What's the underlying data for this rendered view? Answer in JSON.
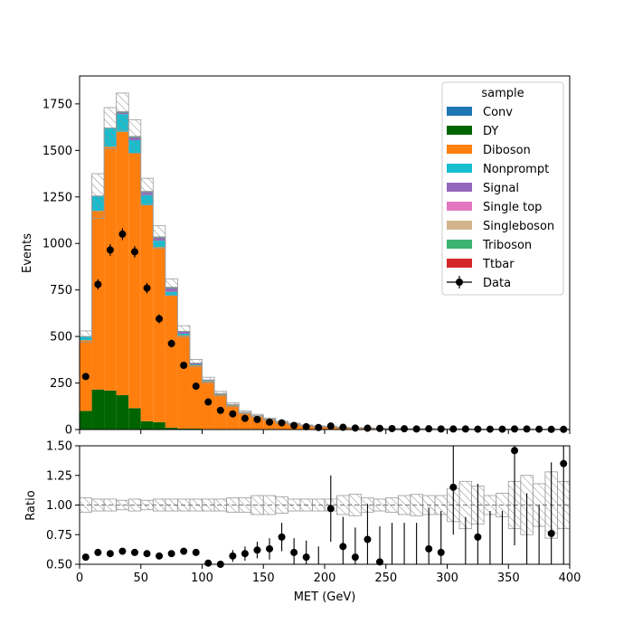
{
  "chart_data": {
    "type": "stacked-histogram-with-ratio",
    "xlabel": "MET (GeV)",
    "xlim": [
      0,
      400
    ],
    "x_ticks": [
      "0",
      "50",
      "100",
      "150",
      "200",
      "250",
      "300",
      "350",
      "400"
    ],
    "bin_edges": [
      0,
      10,
      20,
      30,
      40,
      50,
      60,
      70,
      80,
      90,
      100,
      110,
      120,
      130,
      140,
      150,
      160,
      170,
      180,
      190,
      200,
      210,
      220,
      230,
      240,
      250,
      260,
      270,
      280,
      290,
      300,
      310,
      320,
      330,
      340,
      350,
      360,
      370,
      380,
      390,
      400
    ],
    "top": {
      "ylabel": "Events",
      "ylim": [
        0,
        1900
      ],
      "y_ticks": [
        "0",
        "250",
        "500",
        "750",
        "1000",
        "1250",
        "1500",
        "1750"
      ],
      "legend_title": "sample",
      "legend_position": "top-right",
      "series": [
        {
          "name": "Conv",
          "color": "#1f77b4",
          "values": [
            0,
            0,
            0,
            0,
            0,
            0,
            0,
            0,
            0,
            0,
            0,
            0,
            0,
            0,
            0,
            0,
            0,
            0,
            0,
            0,
            0,
            0,
            0,
            0,
            0,
            0,
            0,
            0,
            0,
            0,
            0,
            0,
            0,
            0,
            0,
            0,
            0,
            0,
            0,
            0
          ]
        },
        {
          "name": "DY",
          "color": "#006400",
          "values": [
            100,
            215,
            210,
            185,
            115,
            45,
            40,
            10,
            5,
            5,
            3,
            2,
            1,
            1,
            0,
            0,
            0,
            0,
            0,
            0,
            0,
            0,
            0,
            0,
            0,
            0,
            0,
            0,
            0,
            0,
            0,
            0,
            0,
            0,
            0,
            0,
            0,
            0,
            0,
            0
          ]
        },
        {
          "name": "Diboson",
          "color": "#ff7f0e",
          "values": [
            380,
            960,
            1310,
            1415,
            1370,
            1160,
            940,
            710,
            500,
            340,
            255,
            185,
            128,
            88,
            72,
            55,
            40,
            30,
            22,
            17,
            15,
            11,
            9,
            8,
            6,
            5,
            5,
            4,
            4,
            3,
            3,
            3,
            2,
            2,
            2,
            2,
            2,
            1,
            1,
            1
          ]
        },
        {
          "name": "Nonprompt",
          "color": "#17becf",
          "values": [
            20,
            80,
            100,
            95,
            70,
            55,
            35,
            20,
            10,
            5,
            4,
            3,
            2,
            1,
            1,
            1,
            0,
            0,
            0,
            0,
            0,
            0,
            0,
            0,
            0,
            0,
            0,
            0,
            0,
            0,
            0,
            0,
            0,
            0,
            0,
            0,
            0,
            0,
            0,
            0
          ]
        },
        {
          "name": "Signal",
          "color": "#9467bd",
          "values": [
            0,
            0,
            0,
            8,
            15,
            15,
            15,
            20,
            10,
            5,
            3,
            2,
            2,
            1,
            1,
            0,
            0,
            0,
            0,
            0,
            0,
            0,
            0,
            0,
            0,
            0,
            0,
            0,
            0,
            0,
            0,
            0,
            0,
            0,
            0,
            0,
            0,
            0,
            0,
            0
          ]
        },
        {
          "name": "Single top",
          "color": "#e377c2",
          "values": [
            0,
            0,
            0,
            0,
            0,
            0,
            0,
            0,
            0,
            0,
            0,
            0,
            0,
            0,
            0,
            0,
            0,
            0,
            0,
            0,
            0,
            0,
            0,
            0,
            0,
            0,
            0,
            0,
            0,
            0,
            0,
            0,
            0,
            0,
            0,
            0,
            0,
            0,
            0,
            0
          ]
        },
        {
          "name": "Singleboson",
          "color": "#d2b48c",
          "values": [
            0,
            0,
            0,
            0,
            0,
            0,
            0,
            0,
            0,
            0,
            0,
            0,
            0,
            0,
            0,
            0,
            0,
            0,
            0,
            0,
            0,
            0,
            0,
            0,
            0,
            0,
            0,
            0,
            0,
            0,
            0,
            0,
            0,
            0,
            0,
            0,
            0,
            0,
            0,
            0
          ]
        },
        {
          "name": "Triboson",
          "color": "#3cb371",
          "values": [
            0,
            0,
            0,
            5,
            5,
            5,
            5,
            5,
            3,
            2,
            1,
            1,
            1,
            1,
            1,
            0,
            0,
            0,
            0,
            0,
            0,
            0,
            0,
            0,
            0,
            0,
            0,
            0,
            0,
            0,
            0,
            0,
            0,
            0,
            0,
            0,
            0,
            0,
            0,
            0
          ]
        },
        {
          "name": "Ttbar",
          "color": "#d62728",
          "values": [
            0,
            0,
            0,
            0,
            0,
            0,
            0,
            0,
            0,
            0,
            0,
            0,
            0,
            0,
            0,
            0,
            0,
            0,
            0,
            0,
            0,
            0,
            0,
            0,
            0,
            0,
            0,
            0,
            0,
            0,
            0,
            0,
            0,
            0,
            0,
            0,
            0,
            0,
            0,
            0
          ]
        }
      ],
      "mc_uncertainty": [
        30,
        120,
        110,
        100,
        90,
        70,
        60,
        45,
        30,
        20,
        15,
        12,
        10,
        8,
        7,
        6,
        5,
        4,
        3,
        3,
        2,
        2,
        2,
        2,
        1,
        1,
        1,
        1,
        1,
        1,
        1,
        1,
        1,
        1,
        1,
        1,
        1,
        1,
        1,
        1
      ],
      "data": {
        "name": "Data",
        "values": [
          285,
          780,
          965,
          1050,
          955,
          760,
          595,
          462,
          345,
          233,
          148,
          103,
          84,
          60,
          54,
          40,
          36,
          22,
          15,
          11,
          19,
          12,
          8,
          7,
          6,
          5,
          4,
          3,
          4,
          3,
          3,
          3,
          2,
          2,
          2,
          3,
          3,
          2,
          1,
          1
        ],
        "errors": [
          17,
          28,
          31,
          32,
          31,
          28,
          24,
          21,
          19,
          15,
          12,
          10,
          9,
          8,
          7,
          6,
          6,
          5,
          4,
          3,
          4,
          3,
          3,
          3,
          2,
          2,
          2,
          2,
          2,
          2,
          2,
          2,
          1,
          1,
          1,
          2,
          2,
          1,
          1,
          1
        ]
      }
    },
    "bottom": {
      "ylabel": "Ratio",
      "ylim": [
        0.5,
        1.5
      ],
      "y_ticks": [
        "0.50",
        "0.75",
        "1.00",
        "1.25",
        "1.50"
      ],
      "ratio_values": [
        0.56,
        0.6,
        0.59,
        0.61,
        0.6,
        0.59,
        0.57,
        0.59,
        0.61,
        0.6,
        0.51,
        0.5,
        0.57,
        0.59,
        0.62,
        0.63,
        0.73,
        0.6,
        0.56,
        null,
        0.97,
        0.65,
        0.56,
        0.71,
        0.52,
        null,
        null,
        null,
        0.63,
        0.6,
        1.15,
        null,
        0.73,
        null,
        null,
        1.46,
        null,
        null,
        0.76,
        1.35
      ],
      "ratio_errors": [
        0.01,
        0.01,
        0.01,
        0.01,
        0.01,
        0.01,
        0.01,
        0.01,
        0.01,
        0.02,
        0.02,
        0.03,
        0.05,
        0.06,
        0.07,
        0.09,
        0.12,
        0.12,
        0.14,
        0.15,
        0.28,
        0.25,
        0.25,
        0.3,
        0.3,
        0.35,
        0.35,
        0.35,
        0.35,
        0.35,
        0.4,
        0.4,
        0.45,
        0.45,
        0.45,
        0.8,
        0.6,
        0.5,
        0.6,
        0.9
      ],
      "unc_half_widths": [
        0.06,
        0.05,
        0.05,
        0.04,
        0.05,
        0.04,
        0.05,
        0.05,
        0.05,
        0.05,
        0.05,
        0.05,
        0.06,
        0.06,
        0.08,
        0.08,
        0.07,
        0.05,
        0.05,
        0.05,
        0.05,
        0.08,
        0.09,
        0.06,
        0.05,
        0.06,
        0.08,
        0.09,
        0.08,
        0.08,
        0.14,
        0.2,
        0.16,
        0.08,
        0.1,
        0.2,
        0.25,
        0.18,
        0.28,
        0.2
      ]
    }
  }
}
